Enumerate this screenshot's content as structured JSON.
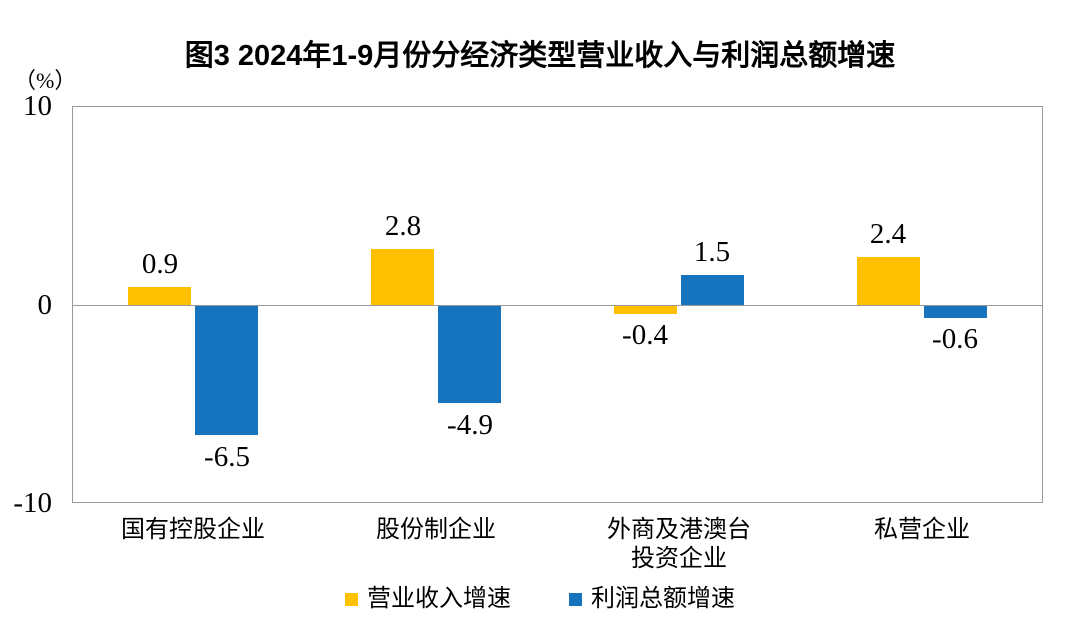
{
  "title": "图3 2024年1-9月份分经济类型营业收入与利润总额增速",
  "y_axis": {
    "unit_label": "（%）",
    "ticks": [
      {
        "label": "10",
        "value": 10
      },
      {
        "label": "0",
        "value": 0
      },
      {
        "label": "-10",
        "value": -10
      }
    ]
  },
  "legend": {
    "items": [
      {
        "label": "营业收入增速",
        "color": "#FFC000"
      },
      {
        "label": "利润总额增速",
        "color": "#1673BE"
      }
    ]
  },
  "colors": {
    "revenue_series": "#FFC000",
    "profit_series": "#1673BE",
    "axis_gray": "#999999"
  },
  "chart_data": {
    "type": "bar",
    "title": "图3 2024年1-9月份分经济类型营业收入与利润总额增速",
    "categories": [
      "国有控股企业",
      "股份制企业",
      "外商及港澳台投资企业",
      "私营企业"
    ],
    "category_label_lines": [
      [
        "国有控股企业"
      ],
      [
        "股份制企业"
      ],
      [
        "外商及港澳台",
        "投资企业"
      ],
      [
        "私营企业"
      ]
    ],
    "series": [
      {
        "name": "营业收入增速",
        "color": "#FFC000",
        "values": [
          0.9,
          2.8,
          -0.4,
          2.4
        ],
        "labels": [
          "0.9",
          "2.8",
          "-0.4",
          "2.4"
        ]
      },
      {
        "name": "利润总额增速",
        "color": "#1673BE",
        "values": [
          -6.5,
          -4.9,
          1.5,
          -0.6
        ],
        "labels": [
          "-6.5",
          "-4.9",
          "1.5",
          "-0.6"
        ]
      }
    ],
    "xlabel": "",
    "ylabel": "（%）",
    "ylim": [
      -10,
      10
    ],
    "grid": false,
    "legend_position": "bottom"
  }
}
